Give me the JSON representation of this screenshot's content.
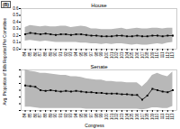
{
  "chart_data": [
    {
      "type": "line",
      "title": "House",
      "ylabel": "Avg. Proportion of Bills Reported Per Committee",
      "xlabel": "Congress",
      "annotation": "(B)",
      "x": [
        84,
        85,
        86,
        87,
        88,
        89,
        90,
        91,
        92,
        93,
        94,
        95,
        96,
        97,
        98,
        99,
        100,
        101,
        102,
        103,
        104,
        105,
        106,
        107,
        108,
        109,
        110,
        111,
        112,
        113
      ],
      "series": [
        {
          "type": "area",
          "color": "#b8b8b8",
          "low": [
            0.12,
            0.13,
            0.12,
            0.11,
            0.12,
            0.11,
            0.1,
            0.1,
            0.1,
            0.1,
            0.1,
            0.09,
            0.09,
            0.08,
            0.08,
            0.07,
            0.08,
            0.07,
            0.08,
            0.08,
            0.07,
            0.06,
            0.07,
            0.06,
            0.06,
            0.07,
            0.08,
            0.07,
            0.09,
            0.1
          ],
          "high": [
            0.32,
            0.35,
            0.34,
            0.33,
            0.34,
            0.33,
            0.33,
            0.34,
            0.34,
            0.32,
            0.33,
            0.34,
            0.33,
            0.3,
            0.3,
            0.29,
            0.29,
            0.29,
            0.3,
            0.31,
            0.29,
            0.3,
            0.31,
            0.3,
            0.3,
            0.31,
            0.31,
            0.3,
            0.31,
            0.31
          ]
        },
        {
          "type": "line",
          "color": "#000000",
          "marker": "square",
          "values": [
            0.22,
            0.24,
            0.23,
            0.22,
            0.23,
            0.22,
            0.21,
            0.22,
            0.22,
            0.21,
            0.22,
            0.22,
            0.21,
            0.2,
            0.2,
            0.19,
            0.19,
            0.19,
            0.2,
            0.2,
            0.19,
            0.19,
            0.2,
            0.19,
            0.19,
            0.2,
            0.2,
            0.19,
            0.2,
            0.2
          ]
        }
      ],
      "xlim": [
        83.2,
        113.8
      ],
      "xticks": [
        84,
        85,
        86,
        87,
        88,
        89,
        90,
        91,
        92,
        93,
        94,
        95,
        96,
        97,
        98,
        99,
        100,
        101,
        102,
        103,
        104,
        105,
        106,
        107,
        108,
        109,
        110,
        111,
        112,
        113
      ],
      "ylim": [
        0.0,
        0.6
      ],
      "yticks": [
        {
          "value": 0,
          "label": "0.0"
        },
        0.1,
        0.2,
        0.3,
        0.4,
        0.5,
        0.6
      ]
    },
    {
      "type": "line",
      "title": "Senate",
      "x": [
        84,
        85,
        86,
        87,
        88,
        89,
        90,
        91,
        92,
        93,
        94,
        95,
        96,
        97,
        98,
        99,
        100,
        101,
        102,
        103,
        104,
        105,
        106,
        107,
        108,
        109,
        110,
        111,
        112,
        113
      ],
      "series": [
        {
          "type": "area",
          "color": "#b8b8b8",
          "low": [
            0.05,
            0.05,
            0.04,
            0.03,
            0.03,
            0.03,
            0.03,
            0.03,
            0.03,
            0.03,
            0.03,
            0.03,
            0.02,
            0.02,
            0.02,
            0.02,
            0.02,
            0.02,
            0.02,
            0.02,
            0.02,
            0.02,
            0.02,
            0.01,
            0.02,
            0.04,
            0.04,
            0.03,
            0.03,
            0.06
          ],
          "high": [
            0.6,
            0.58,
            0.57,
            0.55,
            0.55,
            0.54,
            0.53,
            0.52,
            0.52,
            0.5,
            0.5,
            0.49,
            0.47,
            0.46,
            0.45,
            0.45,
            0.43,
            0.43,
            0.42,
            0.42,
            0.41,
            0.41,
            0.41,
            0.35,
            0.42,
            0.52,
            0.55,
            0.52,
            0.5,
            0.57
          ]
        },
        {
          "type": "line",
          "color": "#000000",
          "marker": "square",
          "values": [
            0.37,
            0.36,
            0.35,
            0.3,
            0.29,
            0.3,
            0.29,
            0.28,
            0.29,
            0.28,
            0.29,
            0.28,
            0.27,
            0.27,
            0.26,
            0.26,
            0.25,
            0.25,
            0.25,
            0.24,
            0.24,
            0.23,
            0.23,
            0.16,
            0.22,
            0.32,
            0.3,
            0.28,
            0.27,
            0.3
          ]
        }
      ],
      "xlim": [
        83.2,
        113.8
      ],
      "xticks": [
        84,
        85,
        86,
        87,
        88,
        89,
        90,
        91,
        92,
        93,
        94,
        95,
        96,
        97,
        98,
        99,
        100,
        101,
        102,
        103,
        104,
        105,
        106,
        107,
        108,
        109,
        110,
        111,
        112,
        113
      ],
      "ylim": [
        0.0,
        0.6
      ],
      "yticks": [
        {
          "value": 0,
          "label": "0.0"
        },
        0.1,
        0.2,
        0.3,
        0.4,
        0.5,
        0.6
      ],
      "tick_labels": "x"
    }
  ]
}
